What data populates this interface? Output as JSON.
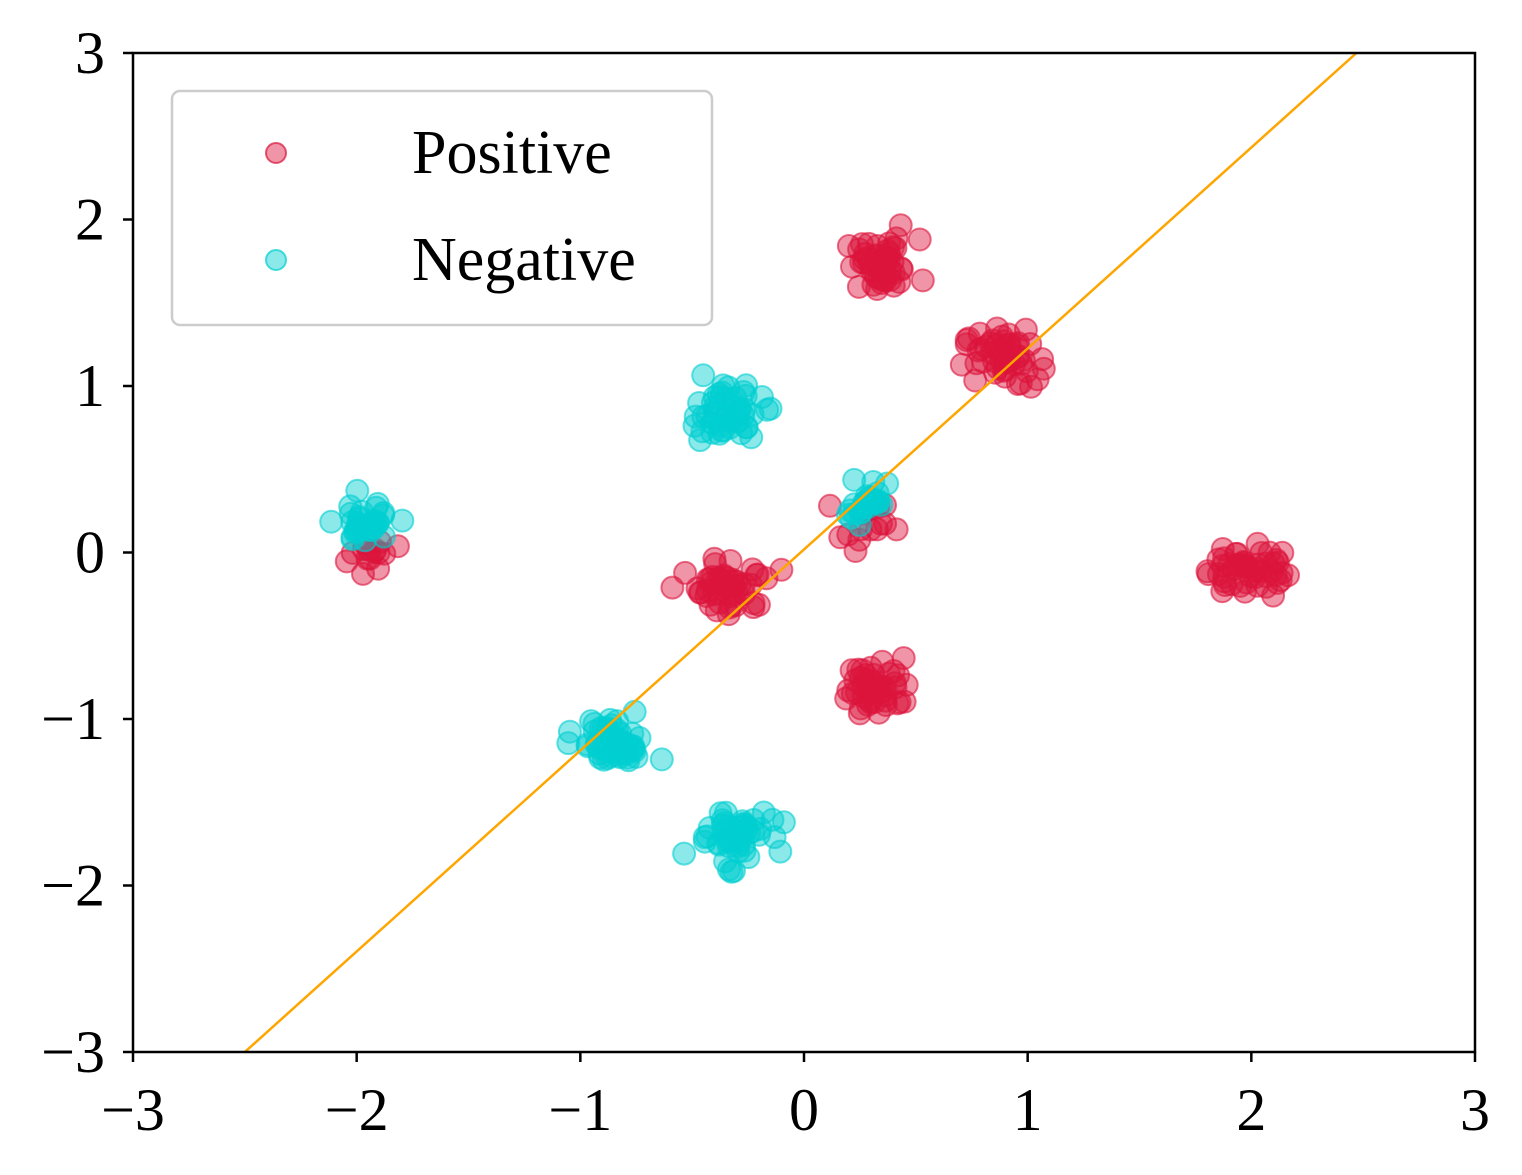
{
  "chart_data": {
    "type": "scatter",
    "xlim": [
      -3,
      3
    ],
    "ylim": [
      -3,
      3
    ],
    "xticks": [
      -3,
      -2,
      -1,
      0,
      1,
      2,
      3
    ],
    "yticks": [
      -3,
      -2,
      -1,
      0,
      1,
      2,
      3
    ],
    "xtick_labels": [
      "−3",
      "−2",
      "−1",
      "0",
      "1",
      "2",
      "3"
    ],
    "ytick_labels": [
      "−3",
      "−2",
      "−1",
      "0",
      "1",
      "2",
      "3"
    ],
    "grid": false,
    "legend_position": "upper-left",
    "series": [
      {
        "name": "Positive",
        "color": "#dc143c",
        "point_opacity": 0.45,
        "clusters": [
          {
            "center": [
              0.35,
              1.72
            ],
            "spread": 0.11,
            "count": 50
          },
          {
            "center": [
              0.88,
              1.17
            ],
            "spread": 0.11,
            "count": 50
          },
          {
            "center": [
              -0.32,
              -0.2
            ],
            "spread": 0.11,
            "count": 50
          },
          {
            "center": [
              0.33,
              -0.8
            ],
            "spread": 0.11,
            "count": 50
          },
          {
            "center": [
              1.97,
              -0.1
            ],
            "spread": 0.11,
            "count": 50
          },
          {
            "center": [
              -1.95,
              -0.03
            ],
            "spread": 0.09,
            "count": 15
          },
          {
            "center": [
              0.3,
              0.17
            ],
            "spread": 0.09,
            "count": 15
          }
        ]
      },
      {
        "name": "Negative",
        "color": "#00ced1",
        "point_opacity": 0.45,
        "clusters": [
          {
            "center": [
              -0.35,
              0.84
            ],
            "spread": 0.11,
            "count": 50
          },
          {
            "center": [
              -0.85,
              -1.15
            ],
            "spread": 0.11,
            "count": 50
          },
          {
            "center": [
              -0.33,
              -1.7
            ],
            "spread": 0.11,
            "count": 50
          },
          {
            "center": [
              -1.97,
              0.17
            ],
            "spread": 0.09,
            "count": 35
          },
          {
            "center": [
              0.28,
              0.3
            ],
            "spread": 0.08,
            "count": 25
          }
        ]
      }
    ],
    "lines": [
      {
        "color": "#ffa500",
        "x": [
          -2.5,
          2.47
        ],
        "y": [
          -3.0,
          3.0
        ]
      }
    ]
  }
}
